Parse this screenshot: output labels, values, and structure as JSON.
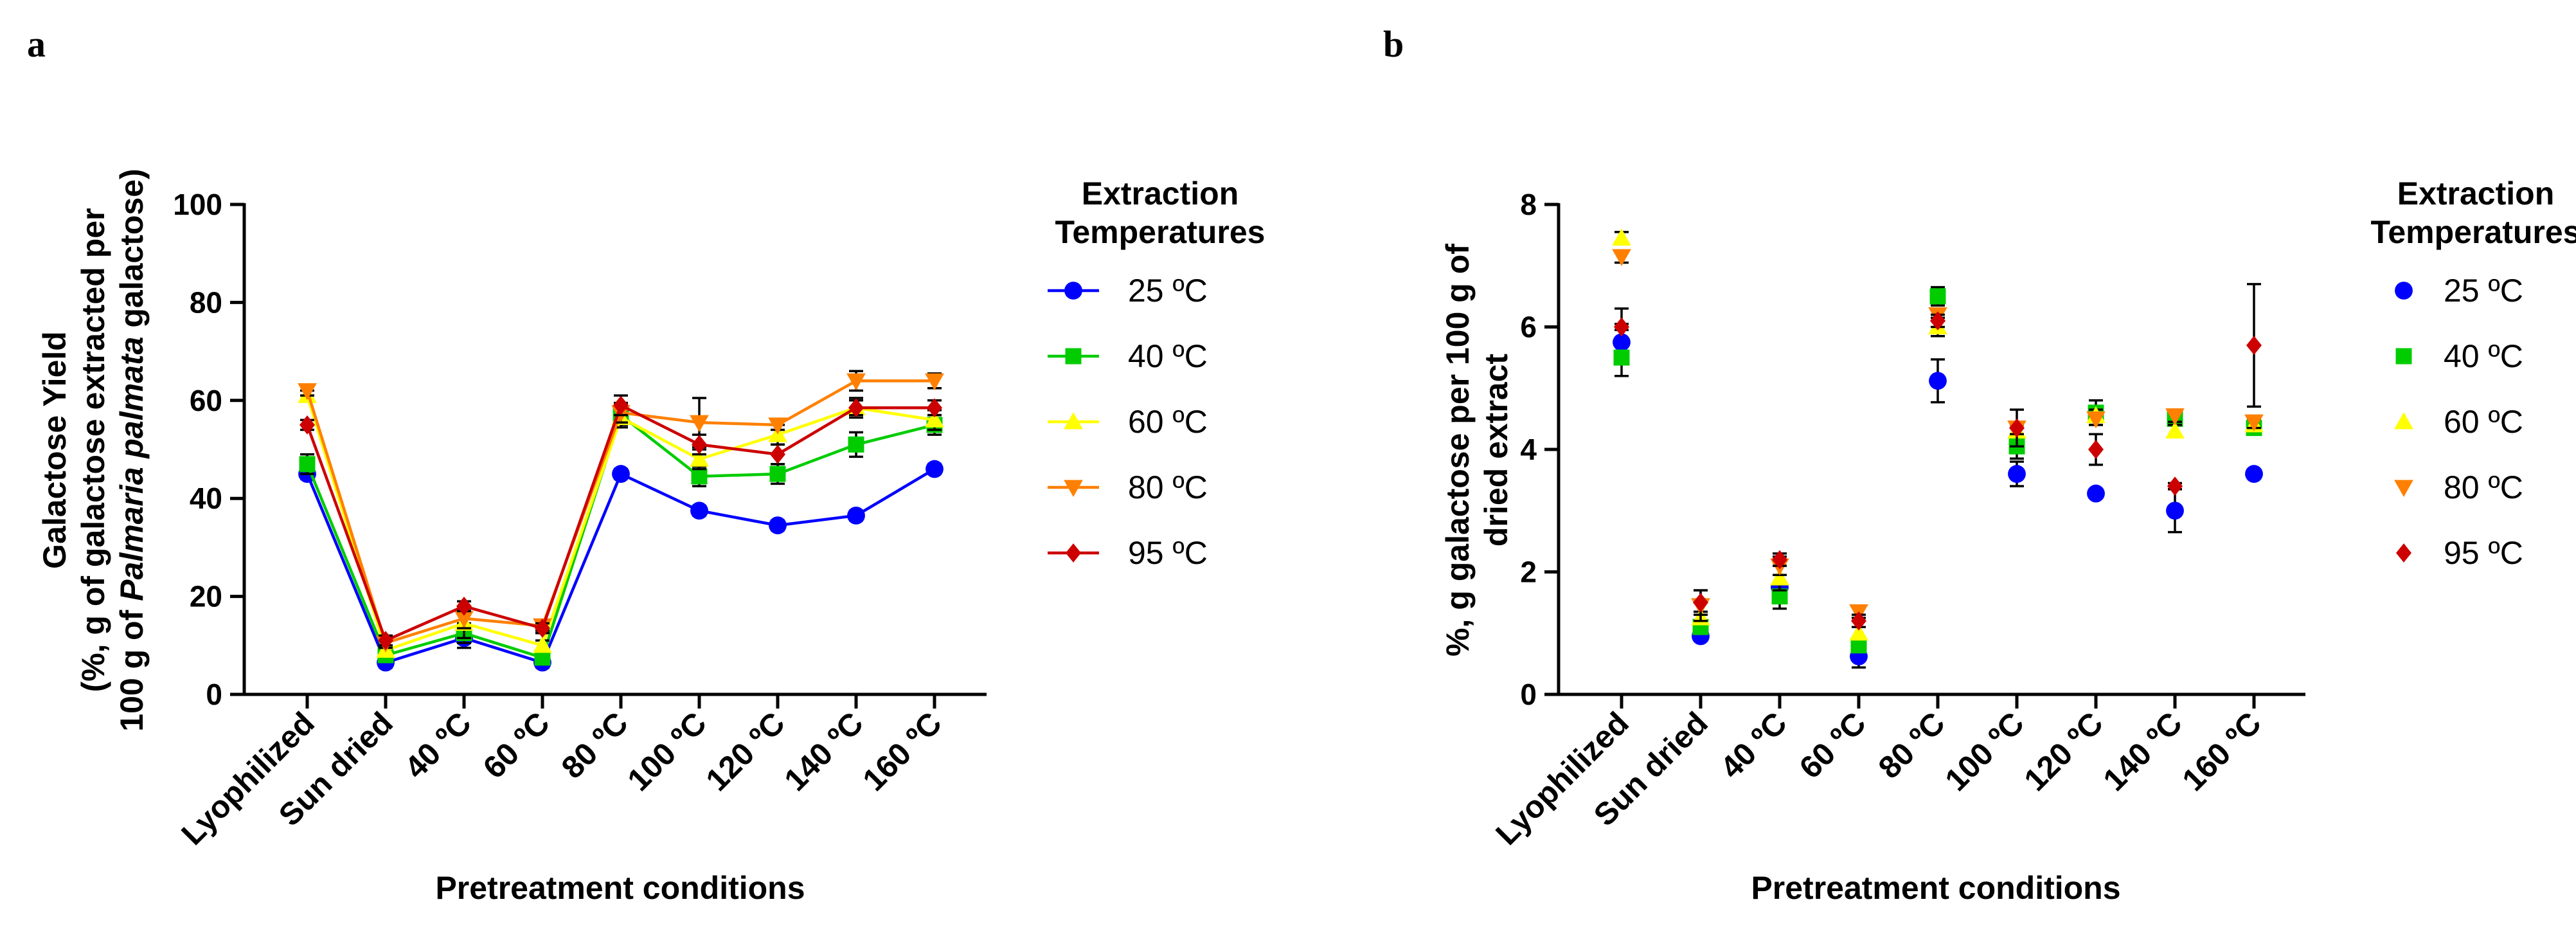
{
  "figure": {
    "panels": [
      {
        "letter": "a",
        "ylabel_lines": [
          "Galactose Yield",
          "(%, g of galactose extracted per",
          [
            "100 g of ",
            "Palmaria palmata",
            " galactose)"
          ]
        ]
      },
      {
        "letter": "b",
        "ylabel_lines": [
          "%, g galactose per 100 g of",
          "dried extract"
        ]
      }
    ]
  },
  "colors": {
    "25 ºC": "#0000FF",
    "40 ºC": "#00CC00",
    "60 ºC": "#FFFF00",
    "80 ºC": "#FF8000",
    "95 ºC": "#CC0000"
  },
  "chart_data": [
    {
      "type": "line",
      "panel": "a",
      "title": "",
      "xlabel": "Pretreatment conditions",
      "ylabel": "Galactose Yield (%, g of galactose extracted per 100 g of Palmaria palmata galactose)",
      "categories": [
        "Lyophilized",
        "Sun dried",
        "40 ºC",
        "60 ºC",
        "80 ºC",
        "100 ºC",
        "120 ºC",
        "140 ºC",
        "160 ºC"
      ],
      "ylim": [
        0,
        100
      ],
      "yticks": [
        0,
        20,
        40,
        60,
        80,
        100
      ],
      "legend_title": [
        "Extraction",
        "Temperatures"
      ],
      "legend_position": "right",
      "series": [
        {
          "name": "25 ºC",
          "marker": "circle",
          "values": [
            45,
            6.5,
            11.5,
            6.5,
            45,
            37.5,
            34.5,
            36.5,
            46
          ],
          "errors": [
            1,
            1,
            2,
            1,
            1,
            1,
            1,
            1,
            1
          ]
        },
        {
          "name": "40 ºC",
          "marker": "square",
          "values": [
            47,
            8,
            12.5,
            7.5,
            57,
            44.5,
            45,
            51,
            55
          ],
          "errors": [
            2,
            1,
            2,
            1,
            2,
            2,
            2,
            2.5,
            2
          ]
        },
        {
          "name": "60 ºC",
          "marker": "triangle-up",
          "values": [
            61,
            9,
            14.5,
            10,
            56.5,
            48,
            53,
            58.5,
            56
          ],
          "errors": [
            1,
            1,
            3,
            1,
            2,
            2,
            2,
            2,
            2
          ]
        },
        {
          "name": "80 ºC",
          "marker": "triangle-down",
          "values": [
            62,
            10.5,
            15.5,
            14,
            57.5,
            55.5,
            55,
            64,
            64
          ],
          "errors": [
            1,
            1,
            2,
            1,
            2,
            5,
            1,
            2,
            1.5
          ]
        },
        {
          "name": "95 ºC",
          "marker": "diamond",
          "values": [
            55,
            11,
            18,
            13.5,
            59,
            51,
            49,
            58.5,
            58.5
          ],
          "errors": [
            1,
            1,
            1,
            1,
            2,
            2,
            2,
            1.5,
            1.5
          ]
        }
      ]
    },
    {
      "type": "scatter",
      "panel": "b",
      "title": "",
      "xlabel": "Pretreatment conditions",
      "ylabel": "%, g galactose per 100 g of dried extract",
      "categories": [
        "Lyophilized",
        "Sun dried",
        "40 ºC",
        "60 ºC",
        "80 ºC",
        "100 ºC",
        "120 ºC",
        "140 ºC",
        "160 ºC"
      ],
      "ylim": [
        0,
        8
      ],
      "yticks": [
        0,
        2,
        4,
        6,
        8
      ],
      "legend_title": [
        "Extraction",
        "Temperatures"
      ],
      "legend_position": "right",
      "series": [
        {
          "name": "25 ºC",
          "marker": "circle",
          "values": [
            5.75,
            0.95,
            1.75,
            0.62,
            5.12,
            3.6,
            3.28,
            3.0,
            3.6
          ],
          "errors": [
            0.55,
            0.05,
            0.2,
            0.18,
            0.35,
            0.2,
            0.05,
            0.35,
            0.05
          ]
        },
        {
          "name": "40 ºC",
          "marker": "square",
          "values": [
            5.5,
            1.1,
            1.6,
            0.8,
            6.5,
            4.05,
            4.6,
            4.5,
            4.35
          ],
          "errors": [
            0.1,
            0.05,
            0.2,
            0.1,
            0.15,
            0.2,
            0.2,
            0.1,
            0.1
          ]
        },
        {
          "name": "60 ºC",
          "marker": "triangle-up",
          "values": [
            7.45,
            1.25,
            1.9,
            1.0,
            6.0,
            4.3,
            4.55,
            4.3,
            4.4
          ],
          "errors": [
            0.1,
            0.1,
            0.2,
            0.1,
            0.15,
            0.1,
            0.1,
            0.1,
            0.1
          ]
        },
        {
          "name": "80 ºC",
          "marker": "triangle-down",
          "values": [
            7.15,
            1.45,
            2.1,
            1.35,
            6.2,
            4.35,
            4.5,
            4.55,
            4.45
          ],
          "errors": [
            0.1,
            0.25,
            0.15,
            0.1,
            0.1,
            0.1,
            0.1,
            0.1,
            0.1
          ]
        },
        {
          "name": "95 ºC",
          "marker": "diamond",
          "values": [
            6.0,
            1.5,
            2.2,
            1.2,
            6.1,
            4.35,
            4.0,
            3.4,
            5.7
          ],
          "errors": [
            0.05,
            0.2,
            0.1,
            0.1,
            0.1,
            0.3,
            0.25,
            0.05,
            1.0
          ]
        }
      ]
    }
  ]
}
